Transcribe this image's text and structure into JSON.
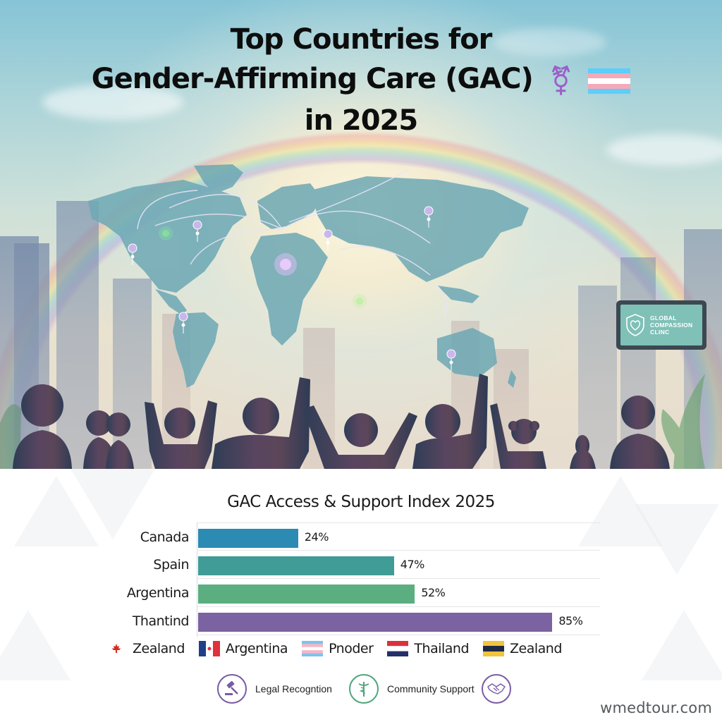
{
  "hero": {
    "title_lines": [
      "Top Countries for",
      "Gender-Affirming Care (GAC)",
      "in 2025"
    ],
    "title_icons": [
      "transgender-symbol-icon",
      "transgender-flag-icon"
    ],
    "transgender_symbol_glyph": "⚧",
    "trans_flag_colors": [
      "#5bcefa",
      "#f5a9b8",
      "#ffffff",
      "#f5a9b8",
      "#5bcefa"
    ],
    "clinic_sign": {
      "lines": [
        "GLOBAL",
        "COMPASSION",
        "CLINC"
      ]
    },
    "map_pins": [
      {
        "region": "west-north-america"
      },
      {
        "region": "central-north-america"
      },
      {
        "region": "central-canada"
      },
      {
        "region": "western-europe"
      },
      {
        "region": "eastern-europe"
      },
      {
        "region": "russia"
      },
      {
        "region": "south-america"
      },
      {
        "region": "middle-east"
      },
      {
        "region": "australia"
      }
    ]
  },
  "chart_data": {
    "type": "bar",
    "orientation": "horizontal",
    "title": "GAC Access & Support Index 2025",
    "categories": [
      "Canada",
      "Spain",
      "Argentina",
      "Thantind"
    ],
    "values": [
      24,
      47,
      52,
      85
    ],
    "value_labels": [
      "24%",
      "47%",
      "52%",
      "85%"
    ],
    "colors": [
      "#2b8bb3",
      "#3f9c96",
      "#5aae80",
      "#7b62a1"
    ],
    "xlabel": "",
    "ylabel": "",
    "xlim": [
      0,
      100
    ],
    "grid": true,
    "legend": {
      "position": "bottom",
      "entries": [
        {
          "label": "Zealand",
          "swatch": "canada-flag"
        },
        {
          "label": "Argentina",
          "swatch": "blue-red-flag"
        },
        {
          "label": "Pnoder",
          "swatch": "trans-flag"
        },
        {
          "label": "Thailand",
          "swatch": "red-white-blue-flag"
        },
        {
          "label": "Zealand",
          "swatch": "yellow-navy-flag"
        }
      ]
    }
  },
  "features": [
    {
      "label": "Legal Recogntion",
      "icon": "gavel-icon"
    },
    {
      "label": "Community Support",
      "icon": "caduceus-icon"
    },
    {
      "label": "",
      "icon": "handshake-icon"
    }
  ],
  "watermark": "wmedtour.com"
}
